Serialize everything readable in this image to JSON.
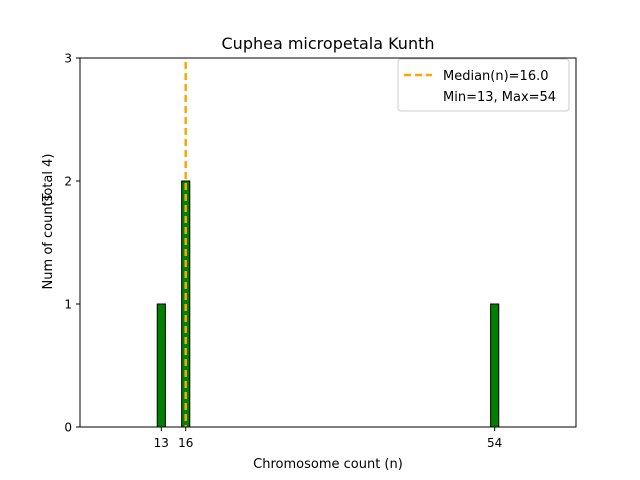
{
  "chart_data": {
    "type": "bar",
    "title": "Cuphea micropetala Kunth",
    "xlabel": "Chromosome count (n)",
    "ylabel": "Num of counts",
    "ylabel_note": "(Total 4)",
    "xlim": [
      3,
      64
    ],
    "ylim": [
      0,
      3
    ],
    "yticks": [
      0,
      1,
      2,
      3
    ],
    "xticks": [
      13,
      16,
      54
    ],
    "bars": [
      {
        "x": 13,
        "value": 1
      },
      {
        "x": 16,
        "value": 2
      },
      {
        "x": 54,
        "value": 1
      }
    ],
    "bar_width": 1,
    "bar_color": "#008000",
    "median": {
      "value": 16.0,
      "label": "Median(n)=16.0",
      "color": "#FFA500"
    },
    "legend": {
      "placement": "top-right",
      "entries": [
        "Median(n)=16.0",
        "Min=13, Max=54"
      ]
    }
  }
}
